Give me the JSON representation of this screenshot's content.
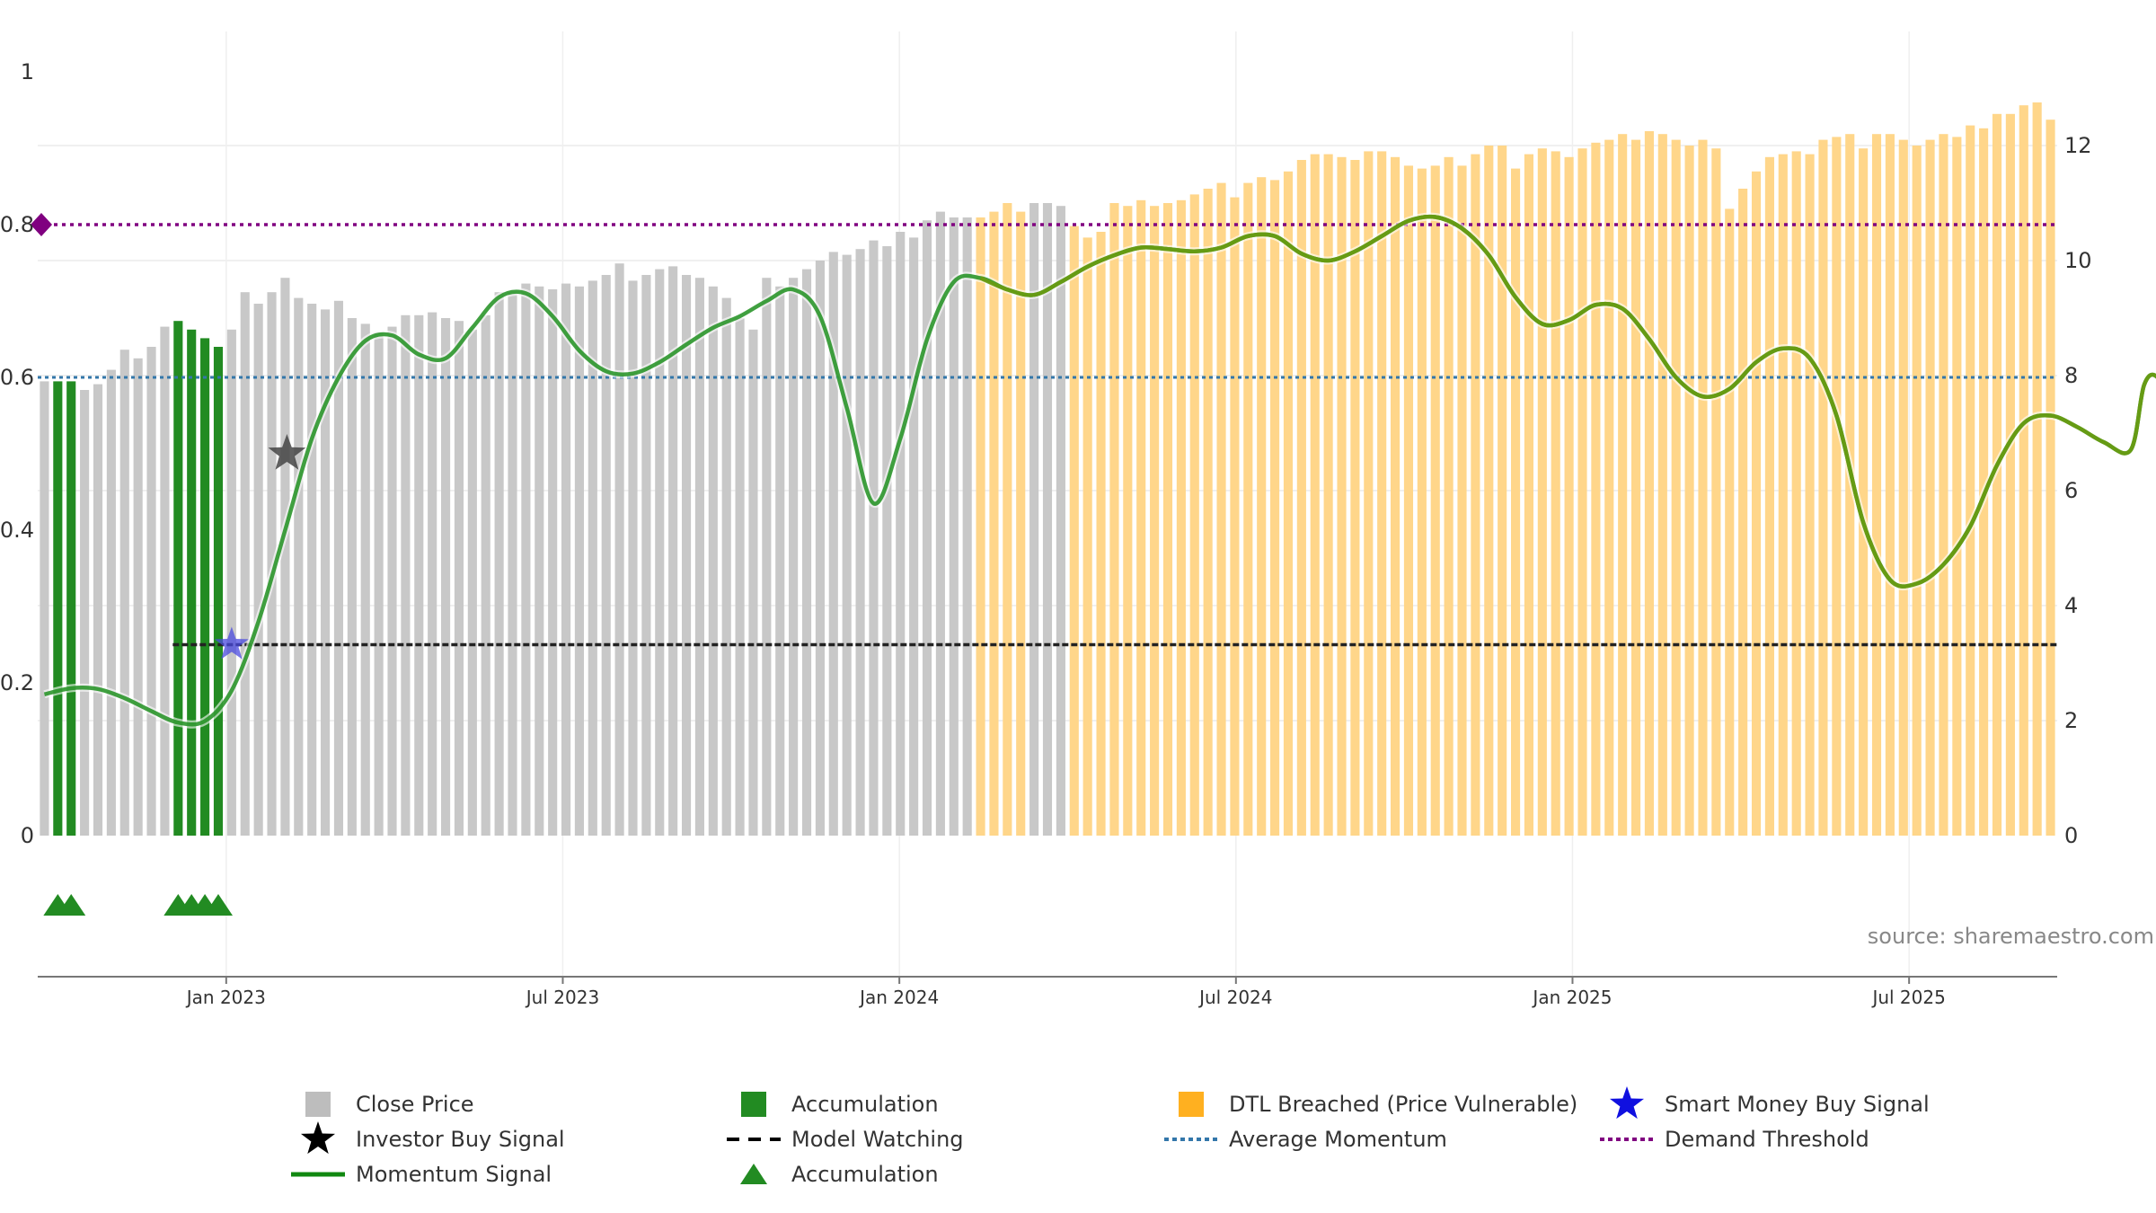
{
  "chart_data": {
    "type": "bar",
    "watermark": "source: sharemaestro.com",
    "left_axis": {
      "ylim": [
        0,
        1
      ],
      "ticks": [
        "0",
        "0.2",
        "0.4",
        "0.6",
        "0.8",
        "1"
      ]
    },
    "right_axis": {
      "ylim": [
        0,
        12
      ],
      "ticks": [
        "0",
        "2",
        "4",
        "6",
        "8",
        "10",
        "12"
      ]
    },
    "x_ticks": [
      {
        "label": "Jan 2023",
        "t": 2023.0
      },
      {
        "label": "Jul 2023",
        "t": 2023.5
      },
      {
        "label": "Jan 2024",
        "t": 2024.0
      },
      {
        "label": "Jul 2024",
        "t": 2024.5
      },
      {
        "label": "Jan 2025",
        "t": 2025.0
      },
      {
        "label": "Jul 2025",
        "t": 2025.5
      }
    ],
    "x_range": [
      2022.72,
      2025.72
    ],
    "close_price": [
      7.9,
      7.9,
      7.9,
      7.75,
      7.85,
      8.1,
      8.45,
      8.3,
      8.5,
      8.85,
      8.95,
      8.8,
      8.65,
      8.5,
      8.8,
      9.45,
      9.25,
      9.45,
      9.7,
      9.35,
      9.25,
      9.15,
      9.3,
      9.0,
      8.9,
      8.75,
      8.85,
      9.05,
      9.05,
      9.1,
      9.0,
      8.95,
      8.8,
      9.05,
      9.45,
      9.45,
      9.6,
      9.55,
      9.5,
      9.6,
      9.55,
      9.65,
      9.75,
      9.95,
      9.65,
      9.75,
      9.85,
      9.9,
      9.75,
      9.7,
      9.55,
      9.35,
      9.0,
      8.8,
      9.7,
      9.55,
      9.7,
      9.85,
      10.0,
      10.15,
      10.1,
      10.2,
      10.35,
      10.25,
      10.5,
      10.4,
      10.7,
      10.85,
      10.75,
      10.75,
      10.75,
      10.85,
      11.0,
      10.85,
      11.0,
      11.0,
      10.95,
      10.6,
      10.4,
      10.5,
      11.0,
      10.95,
      11.05,
      10.95,
      11.0,
      11.05,
      11.15,
      11.25,
      11.35,
      11.1,
      11.35,
      11.45,
      11.4,
      11.55,
      11.75,
      11.85,
      11.85,
      11.8,
      11.75,
      11.9,
      11.9,
      11.8,
      11.65,
      11.6,
      11.65,
      11.8,
      11.65,
      11.85,
      12.0,
      12.0,
      11.6,
      11.85,
      11.95,
      11.9,
      11.8,
      11.95,
      12.05,
      12.1,
      12.2,
      12.1,
      12.25,
      12.2,
      12.1,
      12.0,
      12.1,
      11.95,
      10.9,
      11.25,
      11.55,
      11.8,
      11.85,
      11.9,
      11.85,
      12.1,
      12.15,
      12.2,
      11.95,
      12.2,
      12.2,
      12.1,
      12.0,
      12.1,
      12.2,
      12.15,
      12.35,
      12.3,
      12.55,
      12.55,
      12.7,
      12.75,
      12.45
    ],
    "accumulation_bars": [
      1,
      2,
      10,
      11,
      12,
      13
    ],
    "model_watching_from": 10,
    "gray_bars": [
      74,
      75,
      76
    ],
    "momentum_signal": [
      [
        0,
        0.185
      ],
      [
        2,
        0.193
      ],
      [
        4,
        0.192
      ],
      [
        6,
        0.18
      ],
      [
        8,
        0.163
      ],
      [
        10,
        0.148
      ],
      [
        12,
        0.15
      ],
      [
        14,
        0.19
      ],
      [
        16,
        0.28
      ],
      [
        18,
        0.4
      ],
      [
        20,
        0.52
      ],
      [
        22,
        0.6
      ],
      [
        24,
        0.648
      ],
      [
        26,
        0.655
      ],
      [
        28,
        0.63
      ],
      [
        30,
        0.625
      ],
      [
        32,
        0.665
      ],
      [
        34,
        0.705
      ],
      [
        36,
        0.71
      ],
      [
        38,
        0.68
      ],
      [
        40,
        0.635
      ],
      [
        42,
        0.608
      ],
      [
        44,
        0.605
      ],
      [
        46,
        0.62
      ],
      [
        48,
        0.643
      ],
      [
        50,
        0.665
      ],
      [
        52,
        0.68
      ],
      [
        54,
        0.7
      ],
      [
        56,
        0.715
      ],
      [
        58,
        0.68
      ],
      [
        60,
        0.56
      ],
      [
        62,
        0.435
      ],
      [
        64,
        0.52
      ],
      [
        66,
        0.65
      ],
      [
        68,
        0.725
      ],
      [
        70,
        0.73
      ],
      [
        72,
        0.715
      ],
      [
        74,
        0.708
      ],
      [
        76,
        0.725
      ],
      [
        78,
        0.745
      ],
      [
        80,
        0.76
      ],
      [
        82,
        0.77
      ],
      [
        84,
        0.768
      ],
      [
        86,
        0.765
      ],
      [
        88,
        0.77
      ],
      [
        90,
        0.785
      ],
      [
        92,
        0.785
      ],
      [
        94,
        0.762
      ],
      [
        96,
        0.753
      ],
      [
        98,
        0.765
      ],
      [
        100,
        0.785
      ],
      [
        102,
        0.805
      ],
      [
        104,
        0.81
      ],
      [
        106,
        0.795
      ],
      [
        108,
        0.76
      ],
      [
        110,
        0.705
      ],
      [
        112,
        0.67
      ],
      [
        114,
        0.675
      ],
      [
        116,
        0.695
      ],
      [
        118,
        0.69
      ],
      [
        120,
        0.65
      ],
      [
        122,
        0.6
      ],
      [
        124,
        0.575
      ],
      [
        126,
        0.585
      ],
      [
        128,
        0.62
      ],
      [
        130,
        0.638
      ],
      [
        132,
        0.625
      ],
      [
        134,
        0.55
      ],
      [
        136,
        0.41
      ],
      [
        138,
        0.335
      ],
      [
        140,
        0.33
      ],
      [
        142,
        0.355
      ],
      [
        144,
        0.405
      ],
      [
        146,
        0.485
      ],
      [
        148,
        0.54
      ],
      [
        150,
        0.55
      ],
      [
        152,
        0.535
      ],
      [
        154,
        0.515
      ],
      [
        156,
        0.505
      ],
      [
        157,
        0.59
      ],
      [
        158,
        0.6
      ],
      [
        159,
        0.555
      ],
      [
        161,
        0.59
      ],
      [
        162,
        0.603
      ]
    ],
    "model_watching_value": 0.25,
    "average_momentum": 0.6,
    "demand_threshold": 0.8,
    "investor_buy_signal": [
      [
        18,
        0.5
      ]
    ],
    "smart_money_buy_signal": [
      [
        14,
        0.25
      ]
    ],
    "accumulation_triangles": [
      1,
      2,
      10,
      11,
      12,
      13
    ],
    "colors": {
      "close_price": "#c8c8c8",
      "accumulation": "#228B22",
      "dtl_breached": "#ffd68a",
      "momentum_signal": "#1e8f1e",
      "momentum_signal_dtl": "#6a9a10",
      "average_momentum": "#3377aa",
      "demand_threshold": "#800080",
      "model_watching": "#222222",
      "investor_star": "#444444",
      "smart_money_star": "#4a4adf"
    },
    "legend": [
      {
        "label": "Close Price",
        "symbol": "gray-square-icon"
      },
      {
        "label": "Accumulation",
        "symbol": "green-square-icon"
      },
      {
        "label": "DTL Breached (Price Vulnerable)",
        "symbol": "orange-square-icon"
      },
      {
        "label": "Smart Money Buy Signal",
        "symbol": "blue-star-icon"
      },
      {
        "label": "Investor Buy Signal",
        "symbol": "black-star-icon"
      },
      {
        "label": "Model Watching",
        "symbol": "dashed-line-icon"
      },
      {
        "label": "Average Momentum",
        "symbol": "dotted-blue-line-icon"
      },
      {
        "label": "Demand Threshold",
        "symbol": "dotted-purple-line-icon"
      },
      {
        "label": "Momentum Signal",
        "symbol": "green-line-icon"
      },
      {
        "label": "Accumulation",
        "symbol": "green-triangle-icon"
      }
    ]
  }
}
